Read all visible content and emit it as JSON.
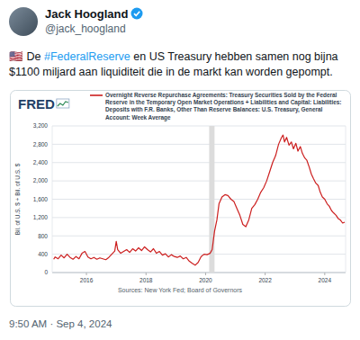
{
  "tweet": {
    "name": "Jack Hoogland",
    "handle": "@jack_hoogland",
    "text": "🇺🇸 De #FederalReserve en US Treasury hebben samen nog bijna $1100 miljard aan liquiditeit die in de markt kan worden gepompt.",
    "timestamp": "9:50 AM · Sep 4, 2024"
  },
  "chart_data": {
    "type": "line",
    "source_logo": "FRED",
    "y_label": "Bil. of U.S. $ + Bil. of U.S. $",
    "sources": "Sources: New York Fed; Board of Governors",
    "x": [
      2014.9,
      2014.95,
      2015.05,
      2015.15,
      2015.25,
      2015.35,
      2015.45,
      2015.55,
      2015.65,
      2015.75,
      2015.85,
      2015.95,
      2016.05,
      2016.15,
      2016.25,
      2016.35,
      2016.45,
      2016.55,
      2016.65,
      2016.75,
      2016.85,
      2016.95,
      2017.0,
      2017.05,
      2017.15,
      2017.25,
      2017.35,
      2017.45,
      2017.55,
      2017.65,
      2017.75,
      2017.85,
      2017.95,
      2018.05,
      2018.15,
      2018.25,
      2018.35,
      2018.45,
      2018.55,
      2018.65,
      2018.75,
      2018.85,
      2018.95,
      2019.05,
      2019.15,
      2019.25,
      2019.35,
      2019.45,
      2019.55,
      2019.65,
      2019.75,
      2019.85,
      2019.95,
      2020.05,
      2020.15,
      2020.22,
      2020.3,
      2020.38,
      2020.45,
      2020.55,
      2020.65,
      2020.75,
      2020.85,
      2020.95,
      2021.05,
      2021.15,
      2021.25,
      2021.35,
      2021.45,
      2021.55,
      2021.65,
      2021.75,
      2021.85,
      2021.95,
      2022.05,
      2022.15,
      2022.25,
      2022.35,
      2022.45,
      2022.55,
      2022.6,
      2022.65,
      2022.72,
      2022.8,
      2022.88,
      2022.95,
      2023.03,
      2023.1,
      2023.18,
      2023.25,
      2023.33,
      2023.4,
      2023.48,
      2023.55,
      2023.62,
      2023.7,
      2023.78,
      2023.85,
      2023.92,
      2024.0,
      2024.08,
      2024.15,
      2024.23,
      2024.3,
      2024.38,
      2024.45,
      2024.52,
      2024.6,
      2024.67
    ],
    "series": [
      {
        "name": "Overnight Reverse Repurchase Agreements: Treasury Securities Sold by the Federal Reserve in the Temporary Open Market Operations + Liabilities and Capital: Liabilities: Deposits with F.R. Banks, Other Than Reserve Balances: U.S. Treasury, General Account: Week Average",
        "color": "#cc1f1f",
        "values": [
          290,
          340,
          300,
          380,
          320,
          400,
          330,
          290,
          350,
          300,
          420,
          460,
          340,
          300,
          330,
          290,
          320,
          300,
          280,
          330,
          400,
          470,
          680,
          500,
          420,
          460,
          500,
          440,
          520,
          470,
          540,
          480,
          560,
          500,
          450,
          520,
          420,
          460,
          380,
          410,
          340,
          390,
          350,
          330,
          360,
          300,
          330,
          250,
          200,
          160,
          220,
          350,
          400,
          390,
          420,
          500,
          900,
          1150,
          1500,
          1650,
          1700,
          1680,
          1600,
          1550,
          1400,
          1250,
          1050,
          1000,
          1150,
          1400,
          1480,
          1600,
          1750,
          1850,
          2000,
          2200,
          2400,
          2550,
          2800,
          2950,
          3000,
          2850,
          2950,
          2780,
          2850,
          2700,
          2820,
          2650,
          2750,
          2600,
          2500,
          2450,
          2300,
          2150,
          2050,
          1950,
          1900,
          1750,
          1650,
          1600,
          1500,
          1450,
          1350,
          1300,
          1250,
          1180,
          1150,
          1080,
          1100
        ]
      }
    ],
    "shaded_periods": [
      [
        2020.12,
        2020.3
      ]
    ],
    "xlim": [
      2014.85,
      2024.7
    ],
    "xticks": [
      2016,
      2018,
      2020,
      2022,
      2024
    ],
    "ylim": [
      0,
      3200
    ],
    "yticks": [
      0,
      400,
      800,
      {
        "value": 1200,
        "label": "1,200"
      },
      {
        "value": 1600,
        "label": "1,600"
      },
      {
        "value": 2000,
        "label": "2,000"
      },
      {
        "value": 2400,
        "label": "2,400"
      },
      {
        "value": 2800,
        "label": "2,800"
      },
      {
        "value": 3200,
        "label": "3,200"
      }
    ],
    "grid": true
  }
}
